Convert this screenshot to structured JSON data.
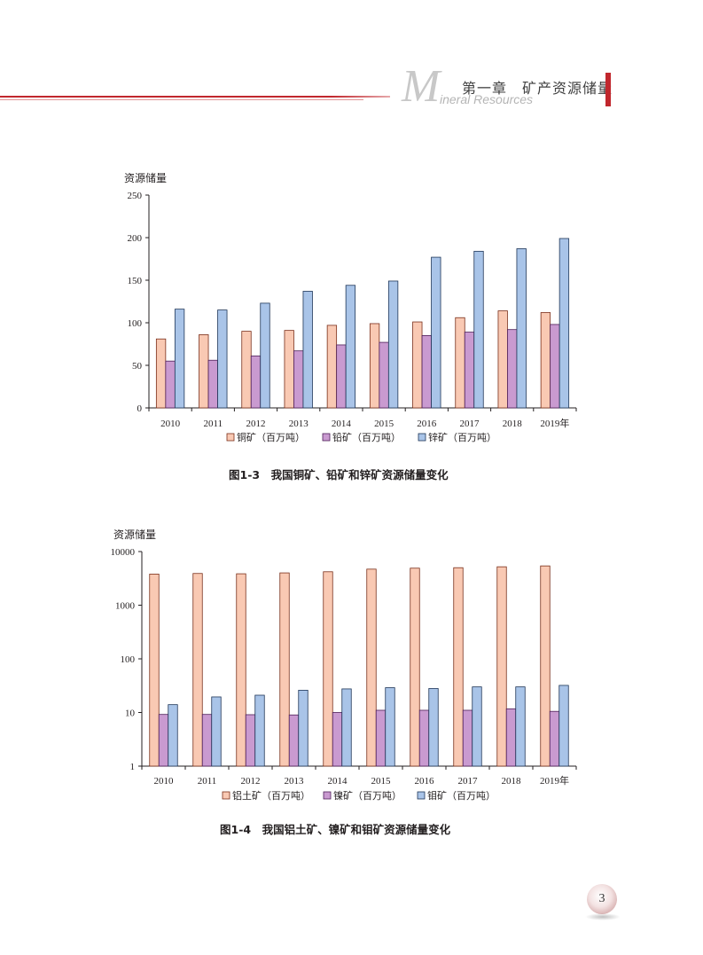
{
  "header": {
    "big_letter": "M",
    "chapter_title": "第一章　矿产资源储量",
    "subtitle_en": "ineral Resources"
  },
  "figures": [
    {
      "caption": "图1-3　我国铜矿、铅矿和锌矿资源储量变化"
    },
    {
      "caption": "图1-4　我国铝土矿、镍矿和钼矿资源储量变化"
    }
  ],
  "chart_data": [
    {
      "type": "bar",
      "title": "",
      "ylabel": "资源储量",
      "xlabel": "",
      "ylim": [
        0,
        250
      ],
      "yticks": [
        "0",
        "50",
        "100",
        "150",
        "200",
        "250"
      ],
      "categories": [
        "2010",
        "2011",
        "2012",
        "2013",
        "2014",
        "2015",
        "2016",
        "2017",
        "2018",
        "2019年"
      ],
      "series": [
        {
          "name": "铜矿（百万吨）",
          "color": "#f9c9b3",
          "values": [
            81,
            86,
            90,
            91,
            97,
            99,
            101,
            106,
            114,
            112
          ]
        },
        {
          "name": "铅矿（百万吨）",
          "color": "#c99ad0",
          "values": [
            55,
            56,
            61,
            67,
            74,
            77,
            85,
            89,
            92,
            98
          ]
        },
        {
          "name": "锌矿（百万吨）",
          "color": "#a9c4e8",
          "values": [
            116,
            115,
            123,
            137,
            144,
            149,
            177,
            184,
            187,
            199
          ]
        }
      ],
      "grid": false,
      "legend_position": "bottom"
    },
    {
      "type": "bar",
      "title": "",
      "ylabel": "资源储量",
      "xlabel": "",
      "yscale": "log",
      "ylim": [
        1,
        10000
      ],
      "yticks": [
        "1",
        "10",
        "100",
        "1000",
        "10000"
      ],
      "categories": [
        "2010",
        "2011",
        "2012",
        "2013",
        "2014",
        "2015",
        "2016",
        "2017",
        "2018",
        "2019年"
      ],
      "series": [
        {
          "name": "铝土矿（百万吨）",
          "color": "#f9c9b3",
          "values": [
            3800,
            3900,
            3850,
            4000,
            4200,
            4700,
            4900,
            5000,
            5200,
            5400
          ]
        },
        {
          "name": "镍矿（百万吨）",
          "color": "#c99ad0",
          "values": [
            9.2,
            9.2,
            9.1,
            9.0,
            10.0,
            11.0,
            11.0,
            11.0,
            11.7,
            10.5
          ]
        },
        {
          "name": "钼矿（百万吨）",
          "color": "#a9c4e8",
          "values": [
            14,
            19.5,
            21,
            26,
            27.5,
            29,
            28,
            30,
            30,
            32
          ]
        }
      ],
      "grid": false,
      "legend_position": "bottom"
    }
  ],
  "page_number": "3"
}
